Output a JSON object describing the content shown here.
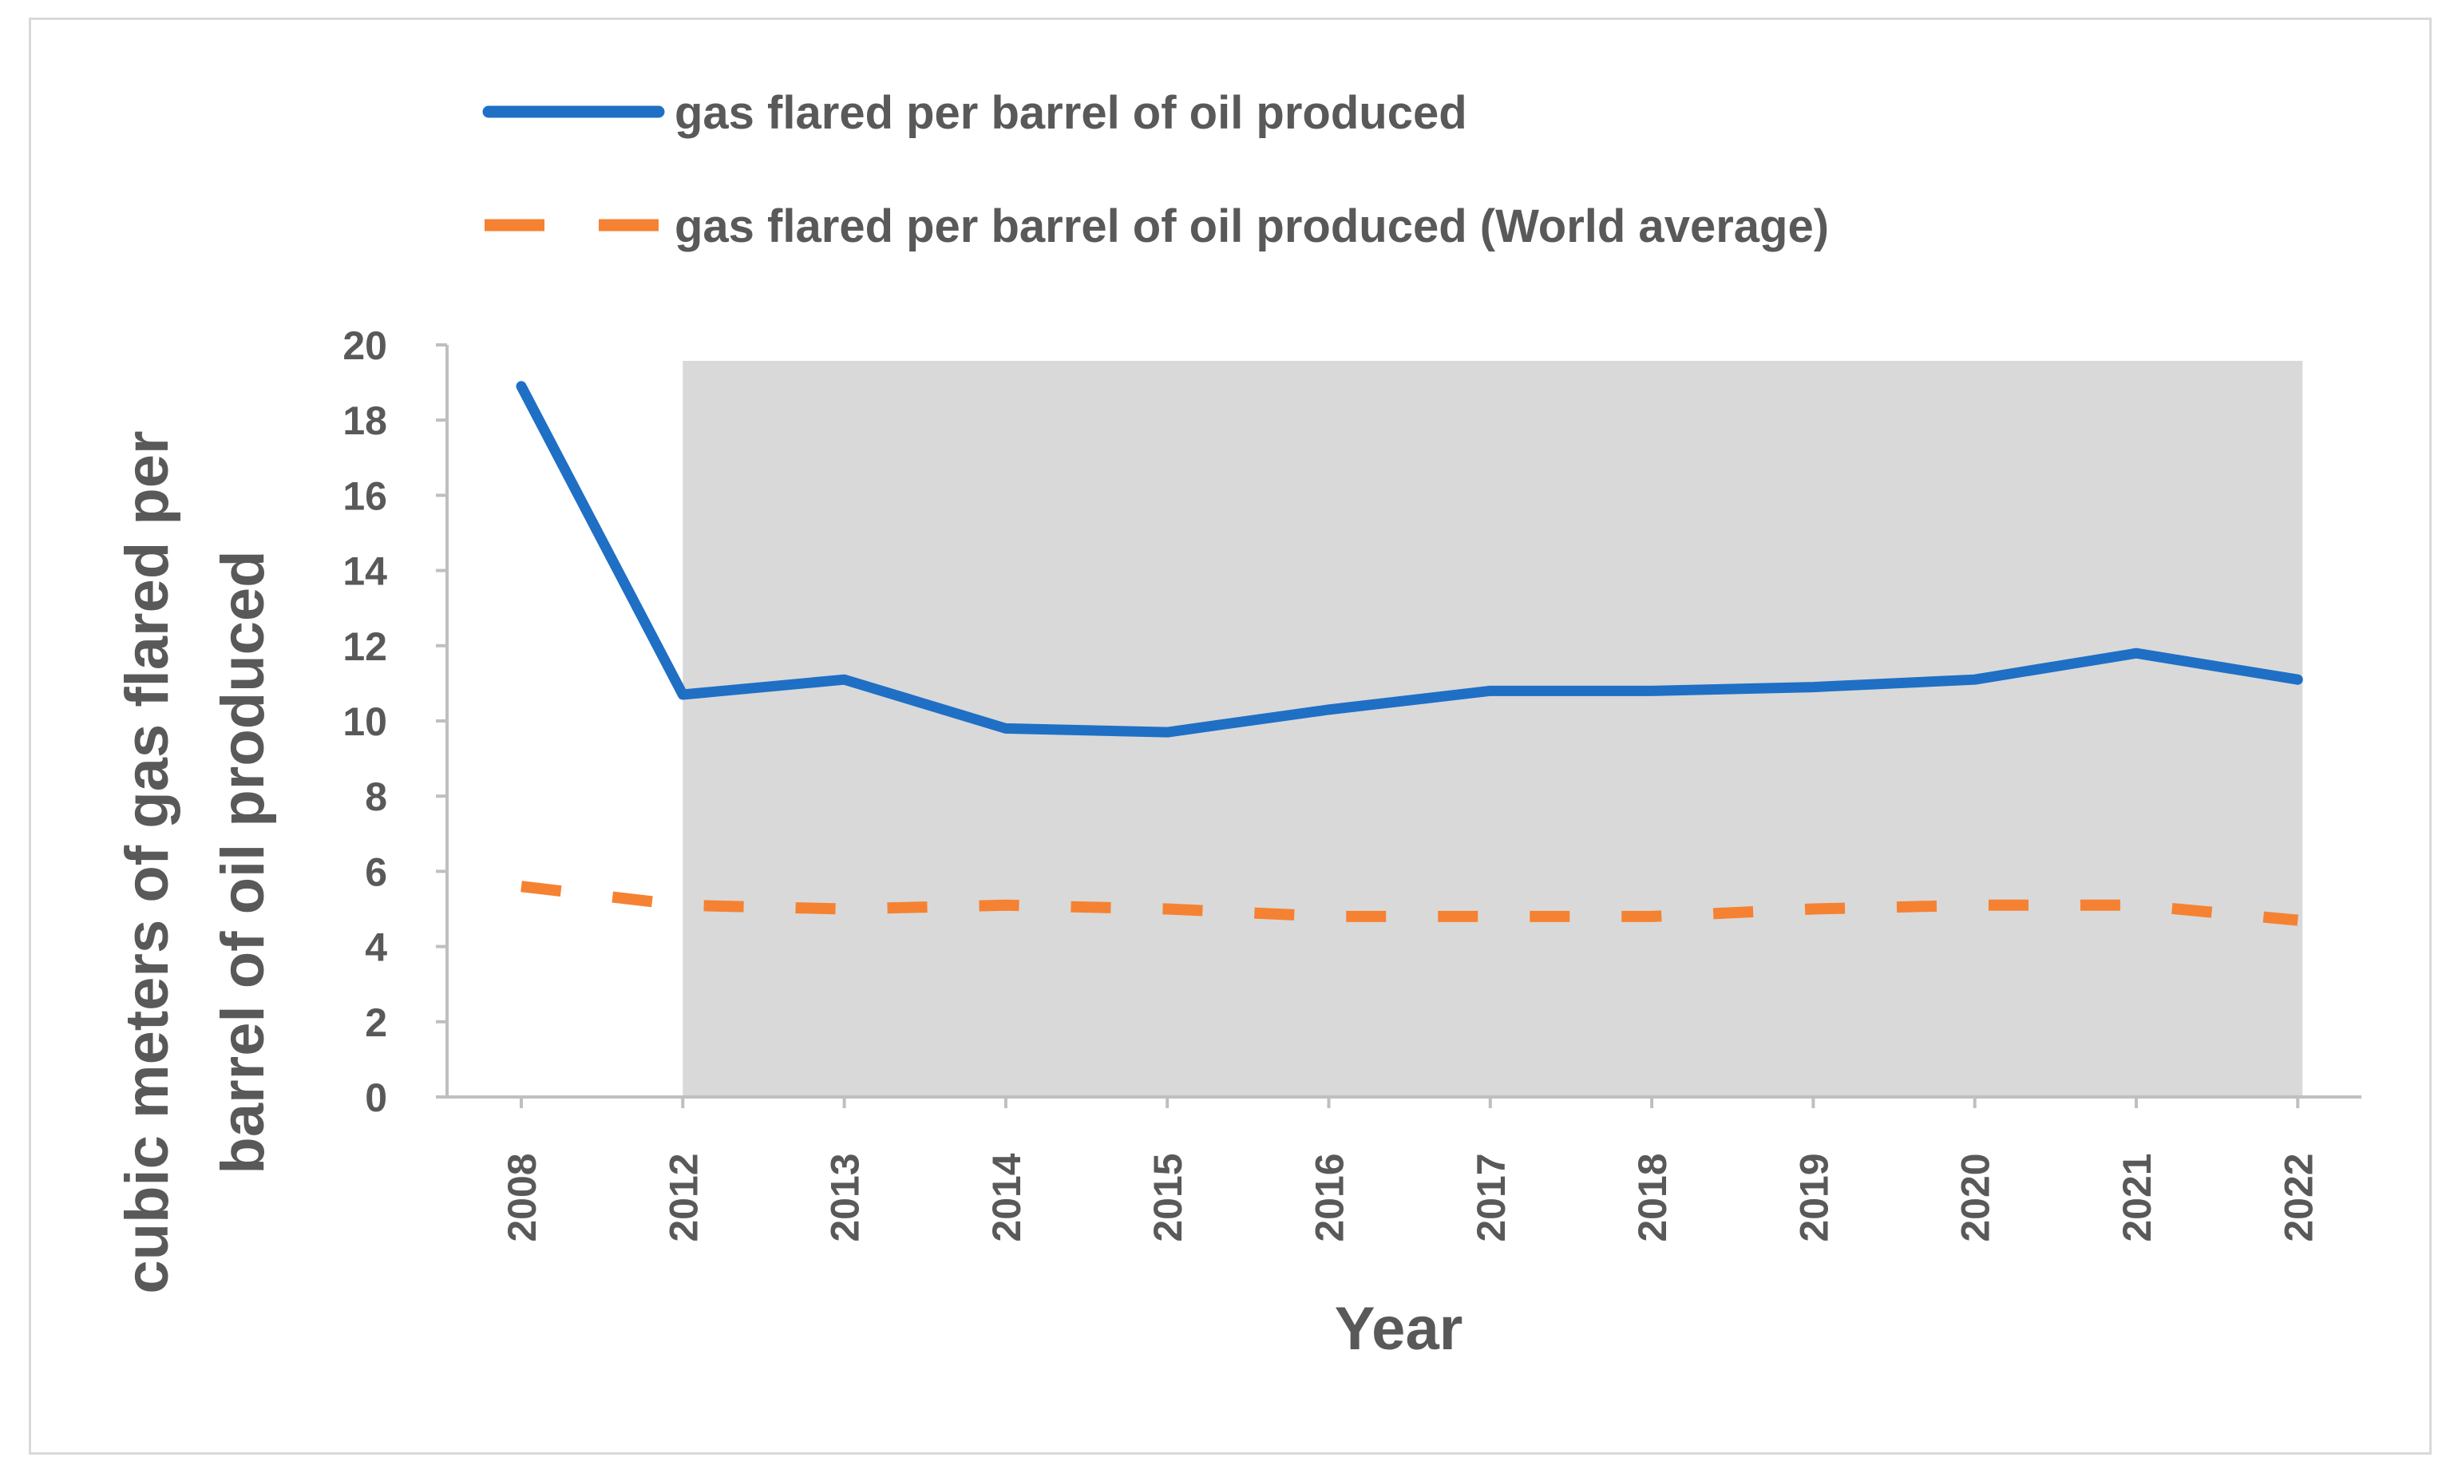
{
  "chart_data": {
    "type": "line",
    "title": "",
    "xlabel": "Year",
    "ylabel_lines": [
      "cubic meters of gas flared per",
      "barrel of oil produced"
    ],
    "categories": [
      "2008",
      "2012",
      "2013",
      "2014",
      "2015",
      "2016",
      "2017",
      "2018",
      "2019",
      "2020",
      "2021",
      "2022"
    ],
    "ylim": [
      0,
      20
    ],
    "yticks": [
      "0",
      "2",
      "4",
      "6",
      "8",
      "10",
      "12",
      "14",
      "16",
      "18",
      "20"
    ],
    "grid": false,
    "legend_position": "top",
    "highlight_region": {
      "from": "2012",
      "to": "2022",
      "color": "#d9d9d9"
    },
    "series": [
      {
        "name": "gas flared per barrel of oil produced",
        "color": "#1f6fc5",
        "style": "solid",
        "values": [
          18.9,
          10.7,
          11.1,
          9.8,
          9.7,
          10.3,
          10.8,
          10.8,
          10.9,
          11.1,
          11.8,
          11.1
        ]
      },
      {
        "name": "gas flared per barrel of oil produced (World average)",
        "color": "#f58232",
        "style": "dashed",
        "values": [
          5.6,
          5.1,
          5.0,
          5.1,
          5.0,
          4.8,
          4.8,
          4.8,
          5.0,
          5.1,
          5.1,
          4.7
        ]
      }
    ]
  }
}
